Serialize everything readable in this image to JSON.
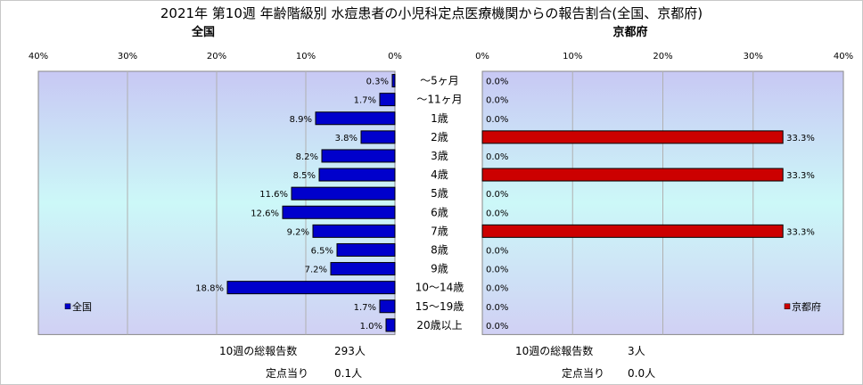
{
  "chart_data": {
    "type": "bar",
    "title": "2021年 第10週 年齢階級別 水痘患者の小児科定点医療機関からの報告割合(全国、京都府)",
    "categories": [
      "～5ヶ月",
      "～11ヶ月",
      "1歳",
      "2歳",
      "3歳",
      "4歳",
      "5歳",
      "6歳",
      "7歳",
      "8歳",
      "9歳",
      "10～14歳",
      "15～19歳",
      "20歳以上"
    ],
    "panels": [
      {
        "name": "全国",
        "color": "#0000cc",
        "axis_ticks": [
          "40%",
          "30%",
          "20%",
          "10%",
          "0%"
        ],
        "xlim": [
          0,
          40
        ],
        "values": [
          0.3,
          1.7,
          8.9,
          3.8,
          8.2,
          8.5,
          11.6,
          12.6,
          9.2,
          6.5,
          7.2,
          18.8,
          1.7,
          1.0
        ],
        "labels": [
          "0.3%",
          "1.7%",
          "8.9%",
          "3.8%",
          "8.2%",
          "8.5%",
          "11.6%",
          "12.6%",
          "9.2%",
          "6.5%",
          "7.2%",
          "18.8%",
          "1.7%",
          "1.0%"
        ],
        "legend": "全国",
        "total_label": "10週の総報告数",
        "total_value": "293人",
        "per_label": "定点当り",
        "per_value": "0.1人"
      },
      {
        "name": "京都府",
        "color": "#cc0000",
        "axis_ticks": [
          "0%",
          "10%",
          "20%",
          "30%",
          "40%"
        ],
        "xlim": [
          0,
          40
        ],
        "values": [
          0.0,
          0.0,
          0.0,
          33.3,
          0.0,
          33.3,
          0.0,
          0.0,
          33.3,
          0.0,
          0.0,
          0.0,
          0.0,
          0.0
        ],
        "labels": [
          "0.0%",
          "0.0%",
          "0.0%",
          "33.3%",
          "0.0%",
          "33.3%",
          "0.0%",
          "0.0%",
          "33.3%",
          "0.0%",
          "0.0%",
          "0.0%",
          "0.0%",
          "0.0%"
        ],
        "legend": "京都府",
        "total_label": "10週の総報告数",
        "total_value": "3人",
        "per_label": "定点当り",
        "per_value": "0.0人"
      }
    ],
    "grid": true
  }
}
